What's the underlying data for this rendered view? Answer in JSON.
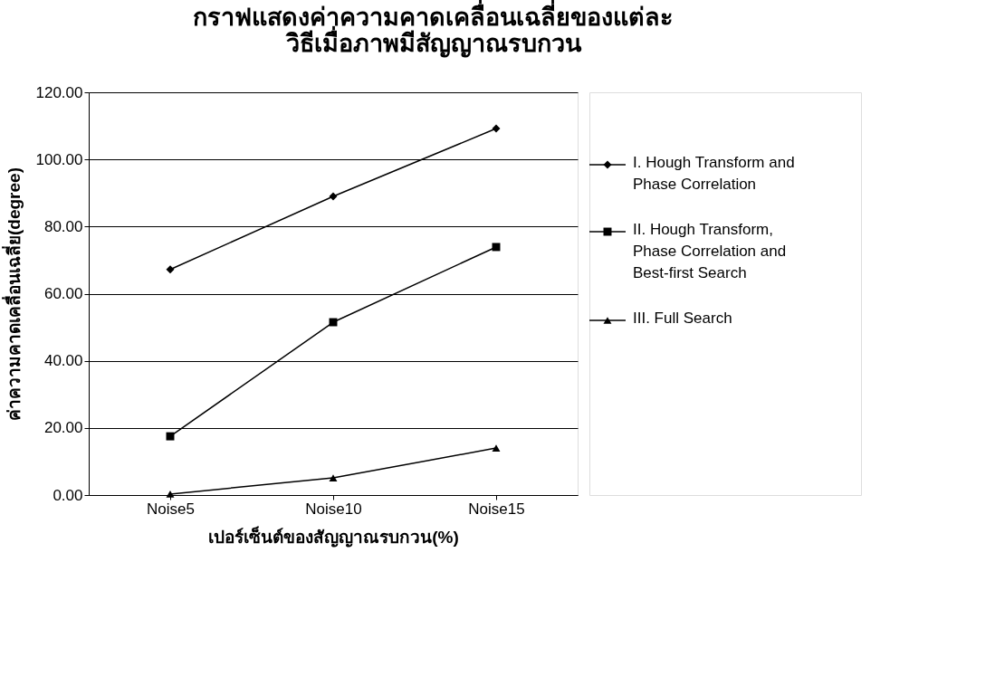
{
  "chart_data": {
    "type": "line",
    "title": "กราฟแสดงค่าความคาดเคลื่อนเฉลี่ยของแต่ละ\nวิธีเมื่อภาพมีสัญญาณรบกวน",
    "xlabel": "เปอร์เซ็นต์ของสัญญาณรบกวน(%)",
    "ylabel": "ค่าความคาดเคลื่อนเฉลี่ย(degree)",
    "categories": [
      "Noise5",
      "Noise10",
      "Noise15"
    ],
    "series": [
      {
        "name": "I. Hough Transform and\nPhase Correlation",
        "color": "#000000",
        "marker": "diamond",
        "values": [
          67.2,
          89.0,
          109.2
        ]
      },
      {
        "name": "II.  Hough Transform,\nPhase Correlation and\nBest-first Search",
        "color": "#000000",
        "marker": "square",
        "values": [
          17.5,
          51.5,
          73.9
        ]
      },
      {
        "name": "III. Full Search",
        "color": "#000000",
        "marker": "triangle",
        "values": [
          0.3,
          5.1,
          14.0
        ]
      }
    ],
    "ylim": [
      0,
      120
    ],
    "yticks": [
      {
        "value": 0,
        "label": "0.00"
      },
      {
        "value": 20,
        "label": "20.00"
      },
      {
        "value": 40,
        "label": "40.00"
      },
      {
        "value": 60,
        "label": "60.00"
      },
      {
        "value": 80,
        "label": "80.00"
      },
      {
        "value": 100,
        "label": "100.00"
      },
      {
        "value": 120,
        "label": "120.00"
      }
    ],
    "grid": "y",
    "legend": "right",
    "line_style": "solid"
  }
}
